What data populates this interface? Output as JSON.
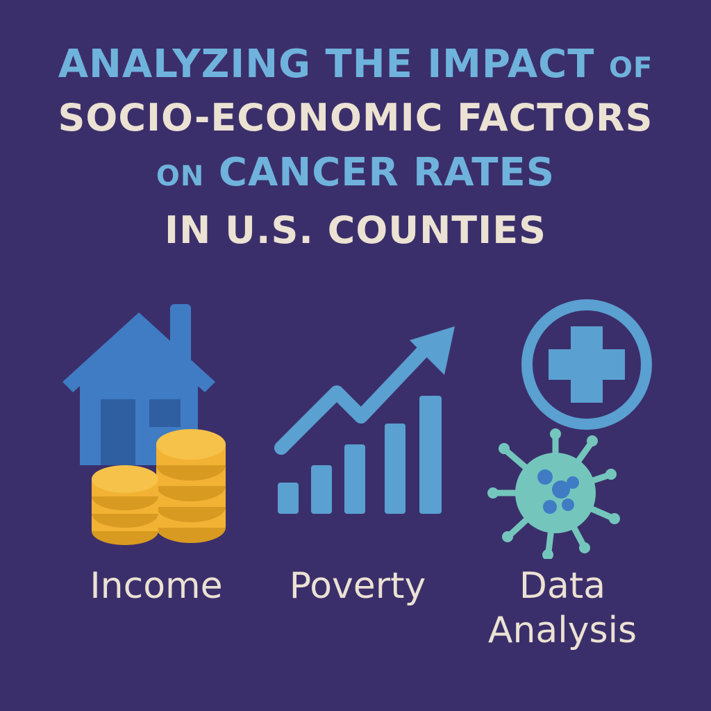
{
  "title": {
    "line1_main": "ANALYZING THE IMPACT",
    "line1_small": "OF",
    "line2": "SOCIO-ECONOMIC FACTORS",
    "line3_small": "ON",
    "line3_main": "CANCER RATES",
    "line4": "IN U.S. COUNTIES"
  },
  "panels": [
    {
      "label": "Income",
      "icon": "house-coins-icon"
    },
    {
      "label": "Poverty",
      "icon": "rising-bar-chart-icon"
    },
    {
      "label_line1": "Data",
      "label_line2": "Analysis",
      "icon": "medical-virus-icon"
    }
  ],
  "colors": {
    "background": "#3b2f6b",
    "title_blue": "#6fb3dc",
    "title_cream": "#ece2d3",
    "house_blue": "#3f7cc4",
    "coin_gold": "#f2b233",
    "chart_blue": "#5aa0d0",
    "virus_teal": "#74c6bd"
  }
}
